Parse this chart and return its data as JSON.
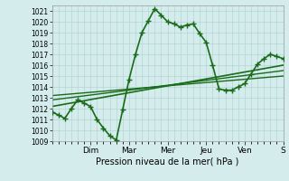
{
  "title": "",
  "xlabel": "Pression niveau de la mer( hPa )",
  "ylabel": "",
  "background_color": "#d4ecec",
  "grid_color": "#b0d0d0",
  "line_color": "#1a6b1a",
  "ylim": [
    1009,
    1021.5
  ],
  "yticks": [
    1009,
    1010,
    1011,
    1012,
    1013,
    1014,
    1015,
    1016,
    1017,
    1018,
    1019,
    1020,
    1021
  ],
  "xlim": [
    0,
    12.6
  ],
  "day_labels": [
    "Dim",
    "Mar",
    "Mer",
    "Jeu",
    "Ven",
    "S"
  ],
  "day_positions": [
    2.1,
    4.2,
    6.3,
    8.4,
    10.5,
    12.6
  ],
  "series1_x": [
    0,
    0.35,
    0.7,
    1.05,
    1.4,
    1.75,
    2.1,
    2.45,
    2.8,
    3.15,
    3.5,
    3.85,
    4.2,
    4.55,
    4.9,
    5.25,
    5.6,
    5.95,
    6.3,
    6.65,
    7.0,
    7.35,
    7.7,
    8.05,
    8.4,
    8.75,
    9.1,
    9.45,
    9.8,
    10.15,
    10.5,
    10.85,
    11.2,
    11.55,
    11.9,
    12.25,
    12.6
  ],
  "series1_y": [
    1011.7,
    1011.4,
    1011.1,
    1012.0,
    1012.8,
    1012.5,
    1012.2,
    1011.0,
    1010.2,
    1009.5,
    1009.1,
    1011.9,
    1014.7,
    1017.0,
    1019.0,
    1020.1,
    1021.2,
    1020.6,
    1020.0,
    1019.8,
    1019.5,
    1019.7,
    1019.8,
    1018.9,
    1018.1,
    1016.0,
    1013.8,
    1013.7,
    1013.7,
    1014.0,
    1014.3,
    1015.2,
    1016.1,
    1016.6,
    1017.0,
    1016.8,
    1016.6
  ],
  "trend_lines": [
    {
      "x": [
        0,
        12.6
      ],
      "y": [
        1012.2,
        1016.0
      ],
      "lw": 1.2
    },
    {
      "x": [
        0,
        12.6
      ],
      "y": [
        1012.8,
        1015.5
      ],
      "lw": 1.0
    },
    {
      "x": [
        0,
        12.6
      ],
      "y": [
        1013.2,
        1015.0
      ],
      "lw": 1.0
    }
  ]
}
